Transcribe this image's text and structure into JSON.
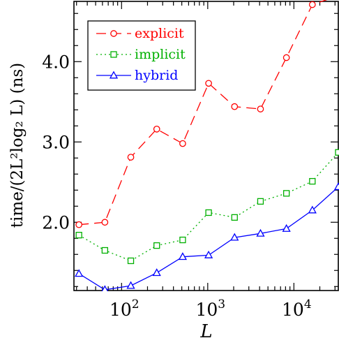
{
  "chart_data": {
    "type": "line",
    "xscale": "log",
    "xlabel": "L",
    "ylabel": "time/(2L²log₂ L) (ns)",
    "xlim": [
      28,
      32768
    ],
    "ylim": [
      1.15,
      4.75
    ],
    "xticks": [
      {
        "value": 100,
        "base": "10",
        "exp": "2"
      },
      {
        "value": 1000,
        "base": "10",
        "exp": "3"
      },
      {
        "value": 10000,
        "base": "10",
        "exp": "4"
      }
    ],
    "yticks": [
      {
        "value": 2.0,
        "label": "2.0"
      },
      {
        "value": 3.0,
        "label": "3.0"
      },
      {
        "value": 4.0,
        "label": "4.0"
      }
    ],
    "x": [
      32,
      64,
      128,
      256,
      512,
      1024,
      2048,
      4096,
      8192,
      16384,
      32768
    ],
    "series": [
      {
        "name": "explicit",
        "color": "#ff0000",
        "marker": "circle",
        "dash": "dashed",
        "values": [
          1.97,
          2.0,
          2.81,
          3.16,
          2.98,
          3.73,
          3.44,
          3.41,
          4.05,
          4.71,
          4.82
        ]
      },
      {
        "name": "implicit",
        "color": "#00b000",
        "marker": "square",
        "dash": "dotted",
        "values": [
          1.84,
          1.65,
          1.52,
          1.71,
          1.78,
          2.12,
          2.06,
          2.26,
          2.36,
          2.51,
          2.87
        ]
      },
      {
        "name": "hybrid",
        "color": "#0000ff",
        "marker": "triangle",
        "dash": "solid",
        "values": [
          1.36,
          1.16,
          1.21,
          1.37,
          1.57,
          1.59,
          1.81,
          1.86,
          1.92,
          2.15,
          2.44
        ]
      }
    ],
    "legend": "top-left",
    "grid": false
  }
}
